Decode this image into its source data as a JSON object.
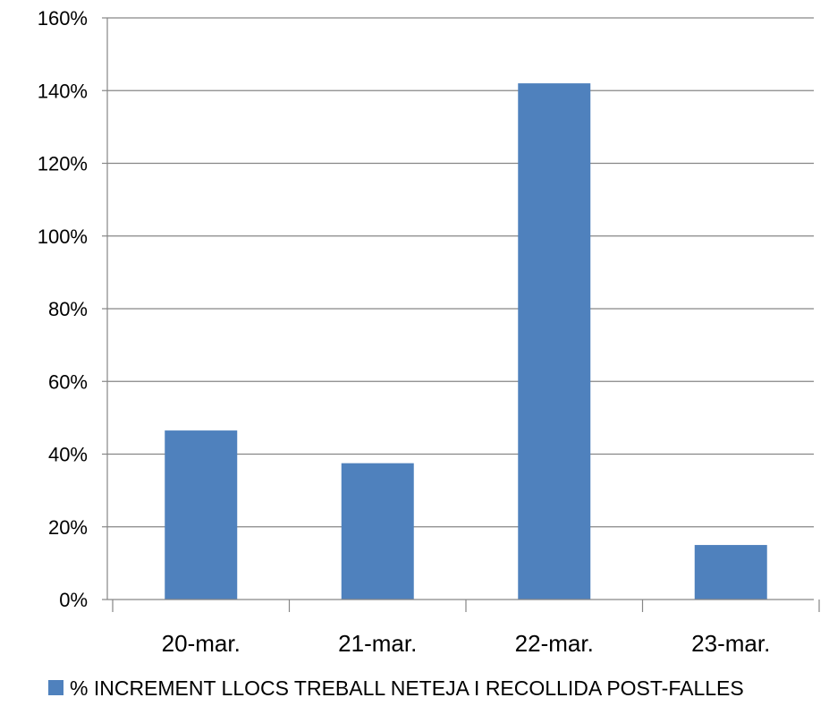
{
  "chart_data": {
    "type": "bar",
    "categories": [
      "20-mar.",
      "21-mar.",
      "22-mar.",
      "23-mar."
    ],
    "series": [
      {
        "name": "% INCREMENT LLOCS TREBALL NETEJA I RECOLLIDA POST-FALLES",
        "values": [
          46.5,
          37.5,
          142,
          15
        ],
        "color": "#4F81BD"
      }
    ],
    "ylim": [
      0,
      160
    ],
    "y_ticks": [
      0,
      20,
      40,
      60,
      80,
      100,
      120,
      140,
      160
    ],
    "y_tick_labels": [
      "0%",
      "20%",
      "40%",
      "60%",
      "80%",
      "100%",
      "120%",
      "140%",
      "160%"
    ],
    "grid": true,
    "gridline_color": "#868686",
    "legend_position": "bottom",
    "title": "",
    "xlabel": "",
    "ylabel": ""
  }
}
